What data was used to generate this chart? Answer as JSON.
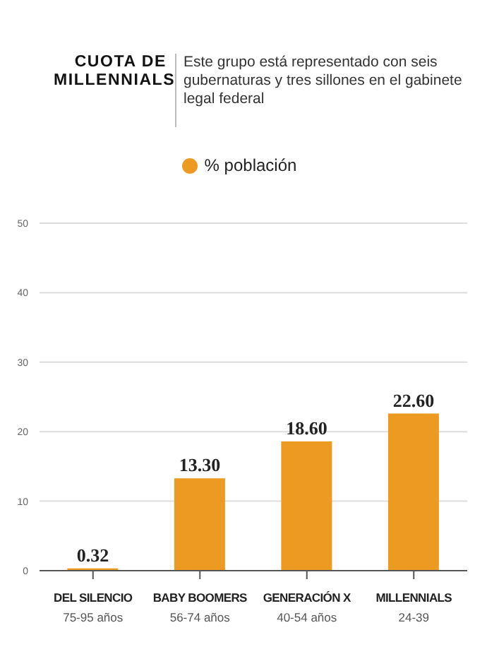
{
  "chart_data": {
    "type": "bar",
    "title": "CUOTA DE\nMILLENNIALS",
    "subtitle": "Este grupo está representado con seis gubernaturas y tres sillones en el gabinete legal federal",
    "categories": [
      "DEL SILENCIO\n75-95 años",
      "BABY BOOMERS\n56-74 años",
      "GENERACIÓN X\n40-54 años",
      "MILLENNIALS\n24-39"
    ],
    "series": [
      {
        "name": "% población",
        "color": "#ec9a22",
        "values": [
          0.32,
          13.3,
          18.6,
          22.6
        ],
        "value_labels": [
          "0.32",
          "13.30",
          "18.60",
          "22.60"
        ]
      }
    ],
    "ylim": [
      0,
      50
    ],
    "yticks": [
      0,
      10,
      20,
      30,
      40,
      50
    ],
    "grid": "y",
    "legend": "top"
  }
}
